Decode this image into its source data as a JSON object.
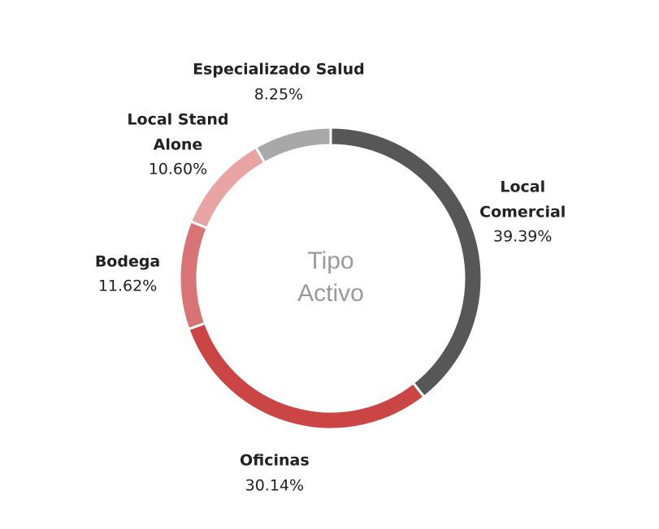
{
  "chart_data": {
    "type": "donut",
    "categories": [
      "Local Comercial",
      "Oficinas",
      "Bodega",
      "Local Stand Alone",
      "Especializado Salud"
    ],
    "values": [
      39.39,
      30.14,
      11.62,
      10.6,
      8.25
    ],
    "value_labels": [
      "39.39%",
      "30.14%",
      "11.62%",
      "10.60%",
      "8.25%"
    ],
    "colors": [
      "#575757",
      "#cb4545",
      "#d97474",
      "#e8a3a3",
      "#a8a8a8"
    ],
    "center_label": [
      "Tipo",
      "Activo"
    ]
  }
}
